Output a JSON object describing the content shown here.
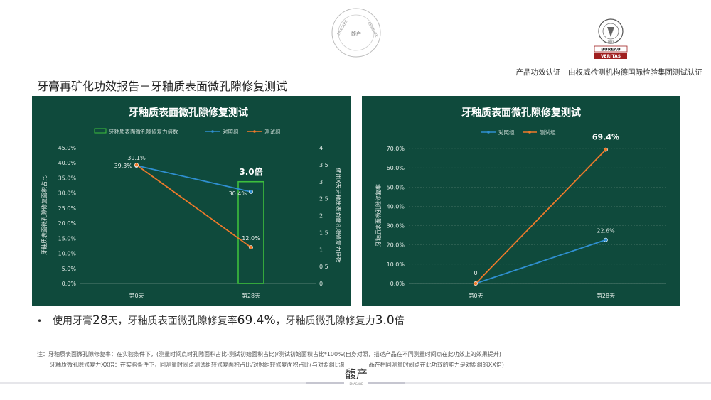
{
  "header": {
    "seal_text_left": "ENACARE",
    "seal_text_right": "ENACARE",
    "seal_center": "馥产",
    "cert_logo_top": "BUREAU",
    "cert_logo_bottom": "VERITAS",
    "cert_logo_year": "1828",
    "cert_text": "产品功效认证－由权威检测机构德国际检验集团测试认证"
  },
  "page_title": "牙膏再矿化功效报告－牙釉质表面微孔隙修复测试",
  "colors": {
    "panel_bg": "#0f4a3c",
    "control": "#2f8fd0",
    "test": "#f07a2a",
    "ratio_box": "#3dbf3d"
  },
  "chart_data": [
    {
      "type": "line",
      "title": "牙釉质表面微孔隙修复测试",
      "categories": [
        "第0天",
        "第28天"
      ],
      "legend": [
        "牙釉质表面微孔隙修复力倍数",
        "对照组",
        "测试组"
      ],
      "ylabel": "牙釉质表面微孔隙修复面积占比",
      "y2label": "使用X天牙釉质表面微孔隙修复力倍数",
      "y_ticks": [
        "45.0%",
        "40.0%",
        "35.0%",
        "30.0%",
        "25.0%",
        "20.0%",
        "15.0%",
        "10.0%",
        "5.0%",
        "0.0%"
      ],
      "y2_ticks": [
        "4",
        "3.5",
        "3",
        "2.5",
        "2",
        "1.5",
        "1",
        "0.5",
        "0"
      ],
      "ylim": [
        0,
        45
      ],
      "y2lim": [
        0,
        4
      ],
      "series": [
        {
          "name": "对照组",
          "values": [
            39.1,
            30.4
          ],
          "labels": [
            "39.1%",
            "30.4%"
          ]
        },
        {
          "name": "测试组",
          "values": [
            39.3,
            12.0
          ],
          "labels": [
            "39.3%",
            "12.0%"
          ]
        }
      ],
      "ratio": {
        "category": "第28天",
        "value": 3.0,
        "label": "3.0倍"
      }
    },
    {
      "type": "line",
      "title": "牙釉质表面微孔隙修复测试",
      "categories": [
        "第0天",
        "第28天"
      ],
      "legend": [
        "对照组",
        "测试组"
      ],
      "ylabel": "牙釉质表面微孔隙修复率",
      "y_ticks": [
        "70.0%",
        "60.0%",
        "50.0%",
        "40.0%",
        "30.0%",
        "20.0%",
        "10.0%",
        "0.0%"
      ],
      "ylim": [
        0,
        70
      ],
      "series": [
        {
          "name": "对照组",
          "values": [
            0,
            22.6
          ],
          "labels": [
            "",
            "22.6%"
          ]
        },
        {
          "name": "测试组",
          "values": [
            0,
            69.4
          ],
          "labels": [
            "0",
            "69.4%"
          ]
        }
      ]
    }
  ],
  "summary": {
    "bullet": "•",
    "p1": "使用牙膏",
    "days": "28",
    "p2": "天，牙釉质表面微孔隙修复率",
    "rate": "69.4%",
    "p3": "，牙釉质微孔隙修复力",
    "mult": "3.0",
    "p4": "倍"
  },
  "notes": {
    "line1": "注：牙釉质表面微孔隙修复率：在实验条件下，(测量时间点时孔隙面积占比-测试初始面积占比)/测试初始面积占比*100%(自身对照，描述产品在不同测量时间点在此功效上的效果提升)",
    "line2": "牙釉质微孔隙修复力XX倍：在实验条件下，同测量时间点测试组较修复面积占比/对照组较修复面积占比(与对照组比较，描述产品在相同测量时间点在此功效的能力是对照组的XX倍)"
  },
  "footer": {
    "logo_text": "馥产",
    "logo_sub": "ENACARE"
  }
}
